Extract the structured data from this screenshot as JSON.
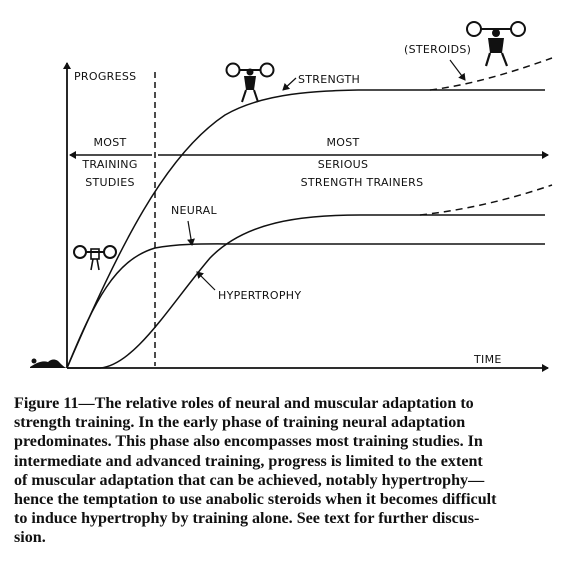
{
  "figure": {
    "y_axis_label": "PROGRESS",
    "x_axis_label": "TIME",
    "curve_labels": {
      "strength": "STRENGTH",
      "neural": "NEURAL",
      "hypertrophy": "HYPERTROPHY",
      "steroids": "(STEROIDS)"
    },
    "zone_left": [
      "MOST",
      "TRAINING",
      "STUDIES"
    ],
    "zone_right": [
      "MOST",
      "SERIOUS",
      "STRENGTH TRAINERS"
    ],
    "icons": [
      "weightlifter-icon-small",
      "weightlifter-icon-medium",
      "weightlifter-icon-large",
      "lying-figure-icon"
    ]
  },
  "caption_lines": [
    "Figure 11—The relative roles of neural and muscular adaptation to",
    "strength training. In the early phase of training neural adaptation",
    "predominates. This phase also encompasses most training studies. In",
    "intermediate and advanced training, progress is limited to the extent",
    "of muscular adaptation that can be achieved, notably hypertrophy—",
    "hence the temptation to use anabolic steroids when it becomes difficult",
    "to induce hypertrophy by training alone. See text for further discus-",
    "sion."
  ]
}
